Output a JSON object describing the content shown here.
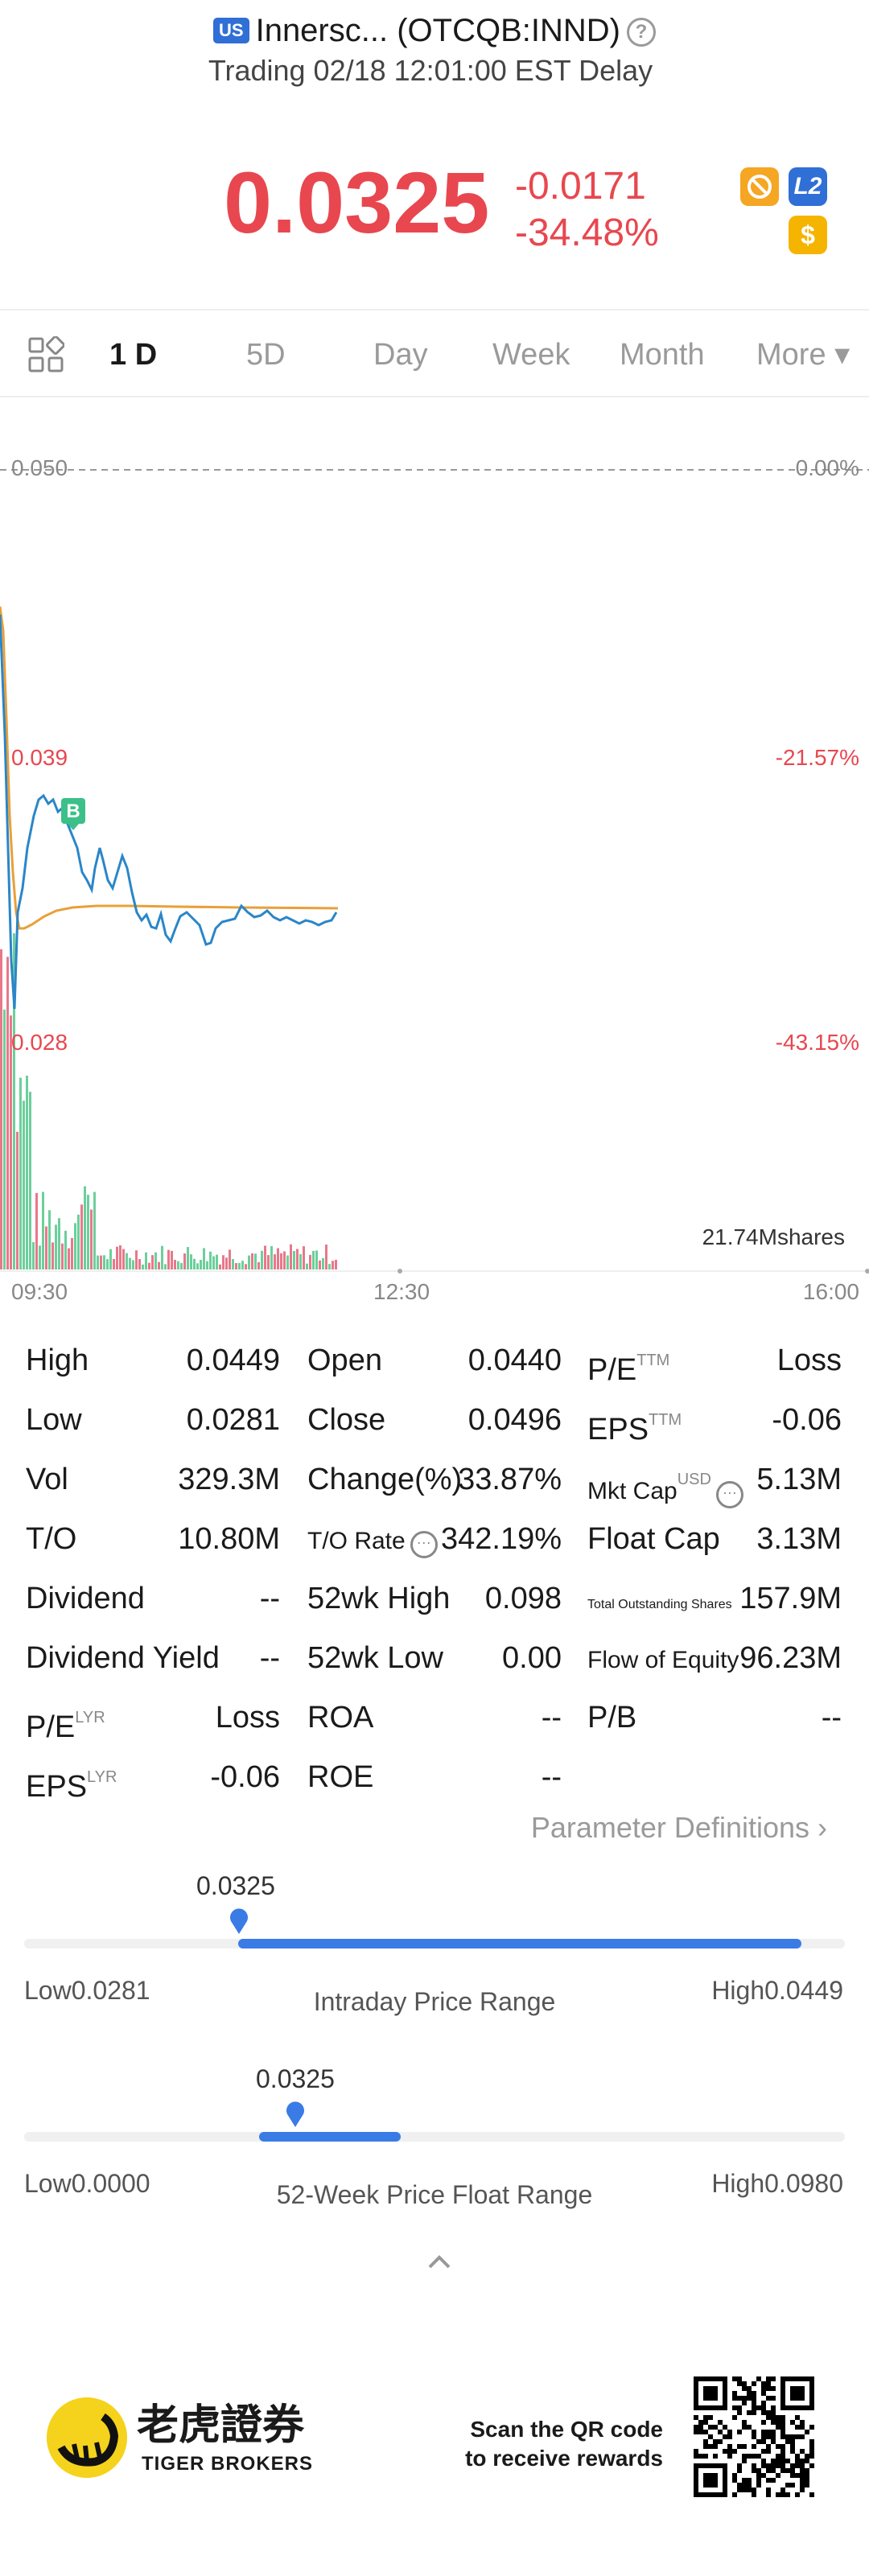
{
  "header": {
    "market_badge": "US",
    "title": "Innersc... (OTCQB:INND)",
    "subtitle": "Trading 02/18 12:01:00 EST Delay",
    "price": "0.0325",
    "change_abs": "-0.0171",
    "change_pct": "-34.48%",
    "level2_badge": "L2",
    "dollar_badge": "$",
    "help_glyph": "?",
    "colors": {
      "down": "#e8474f",
      "accent": "#2f6fd6"
    }
  },
  "tabs": [
    {
      "label": "1 D",
      "active": true
    },
    {
      "label": "5D"
    },
    {
      "label": "Day"
    },
    {
      "label": "Week"
    },
    {
      "label": "Month"
    },
    {
      "label": "More ▾"
    }
  ],
  "chart": {
    "y_left": [
      "0.050",
      "0.039",
      "0.028"
    ],
    "y_right": [
      "0.00%",
      "-21.57%",
      "-43.15%"
    ],
    "x_ticks": [
      "09:30",
      "12:30",
      "16:00"
    ],
    "volume_label": "21.74Mshares",
    "marker": "B"
  },
  "stats": {
    "col1": [
      {
        "label": "High",
        "value": "0.0449"
      },
      {
        "label": "Low",
        "value": "0.0281"
      },
      {
        "label": "Vol",
        "value": "329.3M"
      },
      {
        "label": "T/O",
        "value": "10.80M"
      },
      {
        "label": "Dividend",
        "value": "--"
      },
      {
        "label": "Dividend Yield",
        "value": "--"
      },
      {
        "label": "P/E",
        "sup": "LYR",
        "value": "Loss"
      },
      {
        "label": "EPS",
        "sup": "LYR",
        "value": "-0.06"
      }
    ],
    "col2": [
      {
        "label": "Open",
        "value": "0.0440"
      },
      {
        "label": "Close",
        "value": "0.0496"
      },
      {
        "label": "Change(%)",
        "value": "33.87%"
      },
      {
        "label": "T/O Rate",
        "value": "342.19%"
      },
      {
        "label": "52wk High",
        "value": "0.098"
      },
      {
        "label": "52wk Low",
        "value": "0.00"
      },
      {
        "label": "ROA",
        "value": "--"
      },
      {
        "label": "ROE",
        "value": "--"
      }
    ],
    "col3": [
      {
        "label": "P/E",
        "sup": "TTM",
        "value": "Loss"
      },
      {
        "label": "EPS",
        "sup": "TTM",
        "value": "-0.06"
      },
      {
        "label": "Mkt Cap",
        "sup": "USD",
        "value": "5.13M"
      },
      {
        "label": "Float Cap",
        "value": "3.13M"
      },
      {
        "label": "Total Outstanding Shares",
        "value": "157.9M"
      },
      {
        "label": "Flow of Equity",
        "value": "96.23M"
      },
      {
        "label": "P/B",
        "value": "--"
      }
    ],
    "param_definitions": "Parameter Definitions  ›"
  },
  "intraday_range": {
    "current": "0.0325",
    "low_label": "Low",
    "low": "0.0281",
    "high_label": "High",
    "high": "0.0449",
    "title": "Intraday Price Range",
    "position": 0.26
  },
  "week52_range": {
    "current": "0.0325",
    "low_label": "Low",
    "low": "0.0000",
    "high_label": "High",
    "high": "0.0980",
    "title": "52-Week Price Float Range",
    "position": 0.33
  },
  "footer": {
    "brand_cn": "老虎證券",
    "brand_en": "TIGER BROKERS",
    "qr_line1": "Scan the QR code",
    "qr_line2": "to receive rewards"
  }
}
